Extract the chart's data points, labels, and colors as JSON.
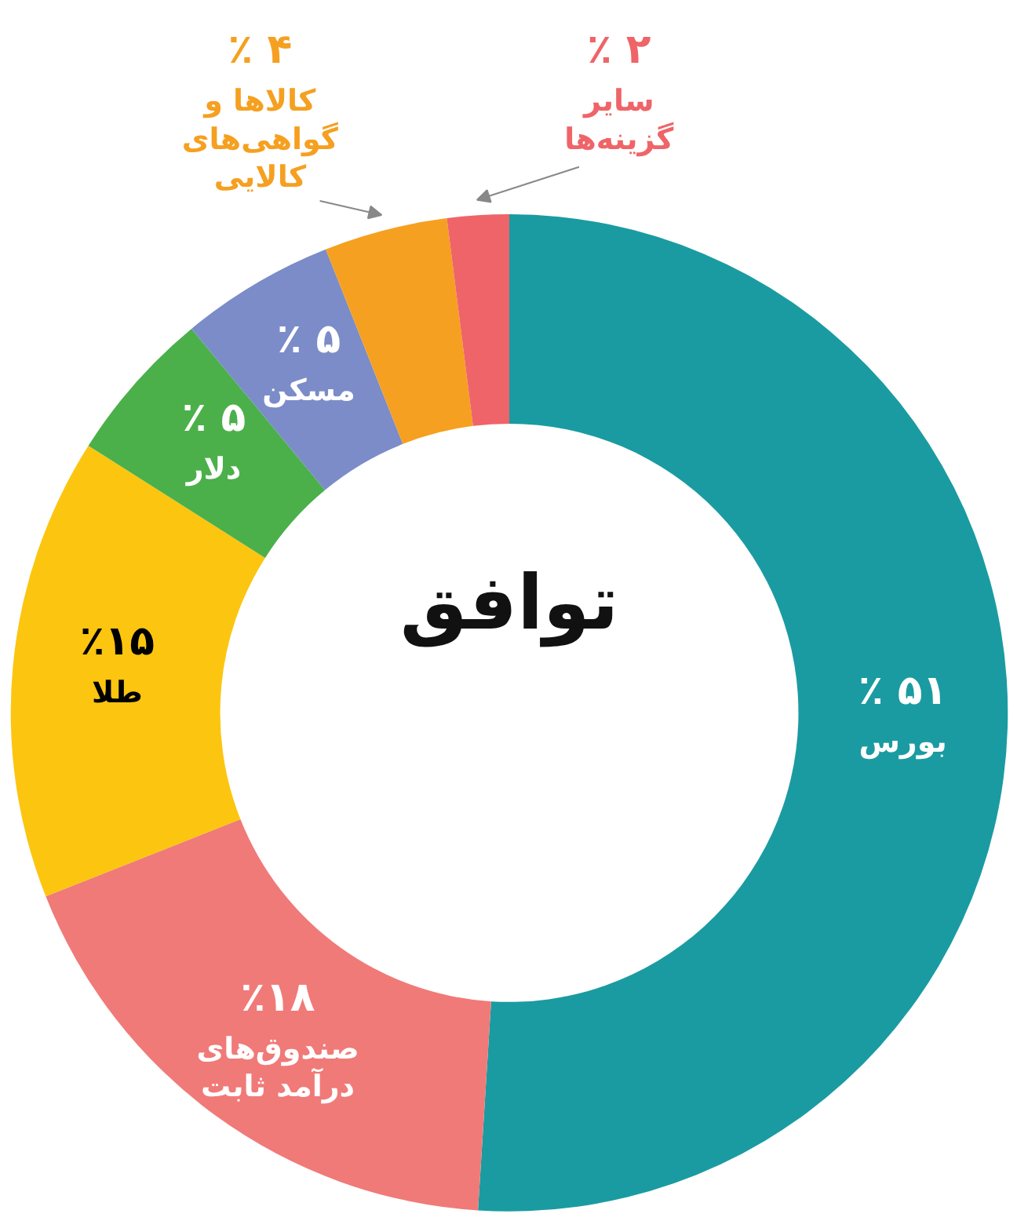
{
  "chart_data": {
    "type": "donut",
    "title": "توافق",
    "categories": [
      "بورس",
      "صندوق‌های\nدرآمد ثابت",
      "طلا",
      "دلار",
      "مسکن",
      "کالاها و\nگواهی‌های\nکالایی",
      "سایر\nگزینه‌ها"
    ],
    "values": [
      51,
      18,
      15,
      5,
      5,
      4,
      2
    ],
    "value_labels": [
      "٪ ۵۱",
      "٪۱۸",
      "٪۱۵",
      "٪ ۵",
      "٪ ۵",
      "٪ ۴",
      "٪ ۲"
    ],
    "colors": [
      "#1a9ba1",
      "#f07a78",
      "#fcc510",
      "#4bb04a",
      "#7b8cc8",
      "#f5a020",
      "#ef6468"
    ]
  }
}
